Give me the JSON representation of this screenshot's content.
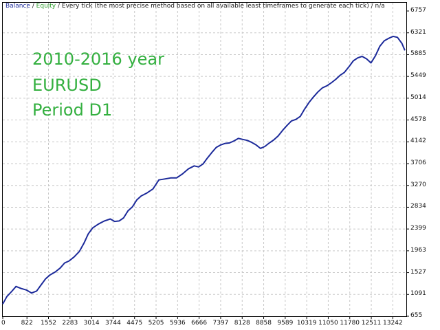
{
  "header": {
    "balance_label": "Balance",
    "sep1": " / ",
    "equity_label": "Equity",
    "sep2": " / ",
    "mode_text": "Every tick (the most precise method based on all available least timeframes to generate each tick)",
    "sep3": " / ",
    "suffix": "n/a"
  },
  "annotation": {
    "line1": "2010-2016 year",
    "line2": "EURUSD",
    "line3": "Period D1"
  },
  "colors": {
    "balance": "#1c2a9a",
    "equity": "#2d9d2d",
    "annotation": "#34b040",
    "grid": "#c8c8c8"
  },
  "chart_data": {
    "type": "line",
    "title": "",
    "xlabel": "",
    "ylabel": "",
    "grid": true,
    "xlim": [
      0,
      13700
    ],
    "ylim": [
      655,
      6757
    ],
    "x_ticks": [
      0,
      822,
      1552,
      2283,
      3014,
      3744,
      4475,
      5205,
      5936,
      6666,
      7397,
      8128,
      8858,
      9589,
      10319,
      11050,
      11780,
      12511,
      13242
    ],
    "y_ticks": [
      6757,
      6321,
      5885,
      5449,
      5014,
      4578,
      4142,
      3706,
      3270,
      2834,
      2399,
      1963,
      1527,
      1091,
      655
    ],
    "series": [
      {
        "name": "Balance",
        "points": [
          [
            0,
            900
          ],
          [
            140,
            1050
          ],
          [
            300,
            1150
          ],
          [
            450,
            1250
          ],
          [
            620,
            1210
          ],
          [
            800,
            1180
          ],
          [
            980,
            1120
          ],
          [
            1150,
            1160
          ],
          [
            1300,
            1280
          ],
          [
            1450,
            1400
          ],
          [
            1600,
            1480
          ],
          [
            1780,
            1540
          ],
          [
            1950,
            1620
          ],
          [
            2100,
            1720
          ],
          [
            2250,
            1760
          ],
          [
            2420,
            1840
          ],
          [
            2600,
            1950
          ],
          [
            2760,
            2120
          ],
          [
            2900,
            2300
          ],
          [
            3050,
            2420
          ],
          [
            3250,
            2500
          ],
          [
            3450,
            2560
          ],
          [
            3650,
            2600
          ],
          [
            3800,
            2550
          ],
          [
            3950,
            2560
          ],
          [
            4100,
            2620
          ],
          [
            4250,
            2760
          ],
          [
            4400,
            2840
          ],
          [
            4550,
            2980
          ],
          [
            4700,
            3060
          ],
          [
            4900,
            3120
          ],
          [
            5100,
            3200
          ],
          [
            5300,
            3380
          ],
          [
            5500,
            3400
          ],
          [
            5700,
            3420
          ],
          [
            5900,
            3420
          ],
          [
            6100,
            3500
          ],
          [
            6300,
            3600
          ],
          [
            6500,
            3660
          ],
          [
            6650,
            3640
          ],
          [
            6800,
            3700
          ],
          [
            6950,
            3820
          ],
          [
            7100,
            3930
          ],
          [
            7250,
            4030
          ],
          [
            7400,
            4080
          ],
          [
            7550,
            4110
          ],
          [
            7700,
            4120
          ],
          [
            7850,
            4160
          ],
          [
            8000,
            4210
          ],
          [
            8150,
            4190
          ],
          [
            8300,
            4170
          ],
          [
            8450,
            4130
          ],
          [
            8600,
            4080
          ],
          [
            8750,
            4010
          ],
          [
            8900,
            4050
          ],
          [
            9050,
            4120
          ],
          [
            9200,
            4180
          ],
          [
            9350,
            4260
          ],
          [
            9500,
            4370
          ],
          [
            9650,
            4470
          ],
          [
            9800,
            4560
          ],
          [
            9950,
            4590
          ],
          [
            10100,
            4650
          ],
          [
            10250,
            4800
          ],
          [
            10400,
            4930
          ],
          [
            10550,
            5040
          ],
          [
            10700,
            5140
          ],
          [
            10850,
            5220
          ],
          [
            11000,
            5260
          ],
          [
            11150,
            5320
          ],
          [
            11300,
            5390
          ],
          [
            11450,
            5470
          ],
          [
            11600,
            5530
          ],
          [
            11750,
            5640
          ],
          [
            11900,
            5760
          ],
          [
            12050,
            5820
          ],
          [
            12200,
            5850
          ],
          [
            12350,
            5800
          ],
          [
            12500,
            5720
          ],
          [
            12650,
            5860
          ],
          [
            12800,
            6050
          ],
          [
            12950,
            6160
          ],
          [
            13100,
            6210
          ],
          [
            13250,
            6250
          ],
          [
            13400,
            6230
          ],
          [
            13550,
            6110
          ],
          [
            13650,
            5970
          ]
        ]
      }
    ]
  }
}
